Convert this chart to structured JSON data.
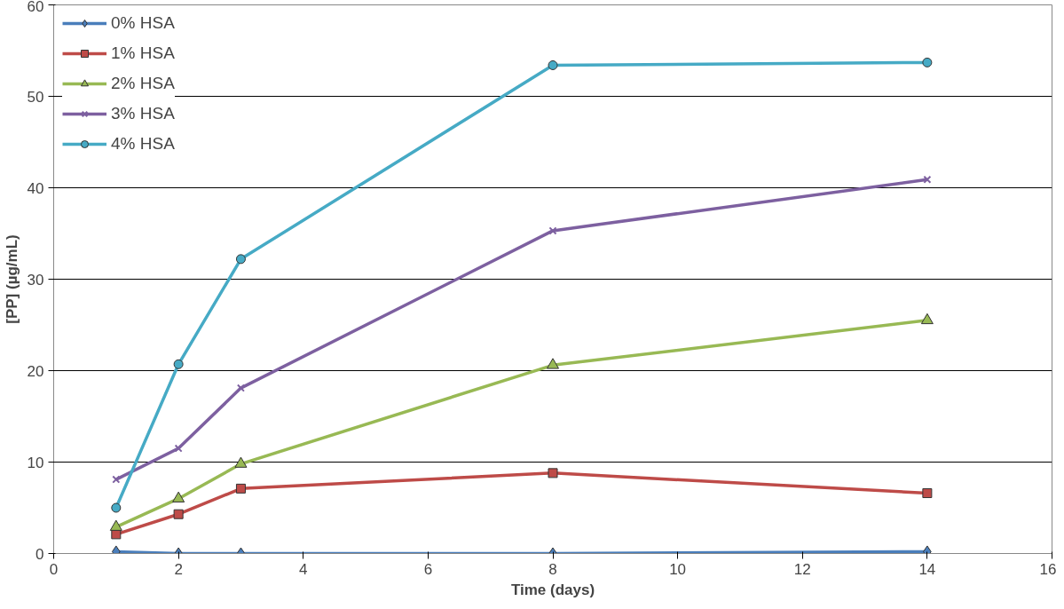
{
  "chart_data": {
    "type": "line",
    "xlabel": "Time (days)",
    "ylabel": "[PP] (µg/mL)",
    "x": [
      1,
      2,
      3,
      8,
      14
    ],
    "xlim": [
      0,
      16
    ],
    "xticks": [
      0,
      2,
      4,
      6,
      8,
      10,
      12,
      14,
      16
    ],
    "ylim": [
      0,
      60
    ],
    "yticks": [
      0,
      10,
      20,
      30,
      40,
      50,
      60
    ],
    "grid": "y",
    "legend": "top left",
    "series": [
      {
        "name": "0% HSA",
        "color": "#4a7ebb",
        "marker": "diamond",
        "values": [
          0.2,
          0,
          0,
          0,
          0.2
        ]
      },
      {
        "name": "1% HSA",
        "color": "#be4b48",
        "marker": "square",
        "values": [
          2.1,
          4.3,
          7.1,
          8.8,
          6.6
        ]
      },
      {
        "name": "2% HSA",
        "color": "#98b954",
        "marker": "triangle",
        "values": [
          2.9,
          6.0,
          9.8,
          20.6,
          25.5
        ]
      },
      {
        "name": "3% HSA",
        "color": "#7d60a0",
        "marker": "cross",
        "values": [
          8.1,
          11.5,
          18.1,
          35.3,
          40.9
        ]
      },
      {
        "name": "4% HSA",
        "color": "#46aac5",
        "marker": "circle",
        "values": [
          5.0,
          20.7,
          32.2,
          53.4,
          53.7
        ]
      }
    ]
  }
}
